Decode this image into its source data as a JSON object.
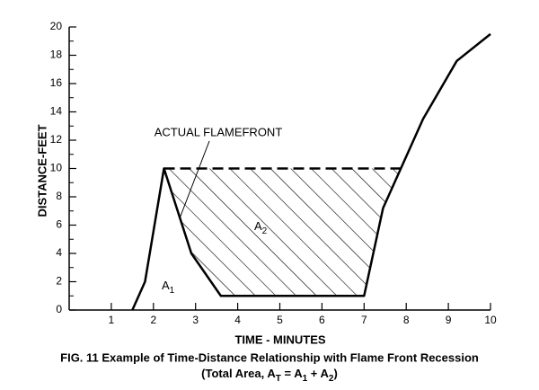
{
  "chart_data": {
    "type": "line",
    "xlabel": "TIME - MINUTES",
    "ylabel": "DISTANCE-FEET",
    "xlim": [
      0,
      10
    ],
    "ylim": [
      0,
      20
    ],
    "xticks": [
      1,
      2,
      3,
      4,
      5,
      6,
      7,
      8,
      9,
      10
    ],
    "yticks": [
      0,
      2,
      4,
      6,
      8,
      10,
      12,
      14,
      16,
      18,
      20
    ],
    "color": "#000000",
    "x": [
      1.5,
      1.8,
      2.25,
      2.9,
      3.6,
      7,
      7.45,
      8.4,
      9.2,
      10
    ],
    "values": [
      0,
      2,
      10,
      4,
      1,
      1,
      7.2,
      13.5,
      17.6,
      19.5
    ],
    "dashed_line": {
      "x": [
        2.25,
        8
      ],
      "values": [
        10,
        10
      ]
    },
    "annotations": {
      "flamefront_label": "ACTUAL FLAMEFRONT",
      "area_1": [
        "A",
        "1"
      ],
      "area_2": [
        "A",
        "2"
      ]
    },
    "caption": {
      "line1": "FIG. 11  Example of Time-Distance Relationship with Flame Front Recession",
      "line2": [
        "(Total Area, A",
        "T",
        " = A",
        "1",
        " + A",
        "2",
        ")"
      ]
    }
  }
}
